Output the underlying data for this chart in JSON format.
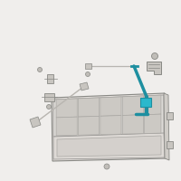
{
  "bg_color": "#f0eeec",
  "panel_color": "#e0ddd8",
  "panel_edge_color": "#aaa8a4",
  "cell_color": "#d4d0cb",
  "cell_edge": "#b0ada8",
  "highlight_color": "#1e8fa0",
  "highlight_color2": "#2ab8cc",
  "rod_color": "#b8b5b0",
  "part_color": "#c8c5c0",
  "part_edge": "#888884",
  "screw_color": "#c0bdb8",
  "screw_edge": "#888884",
  "shadow_color": "#d0cdc8"
}
